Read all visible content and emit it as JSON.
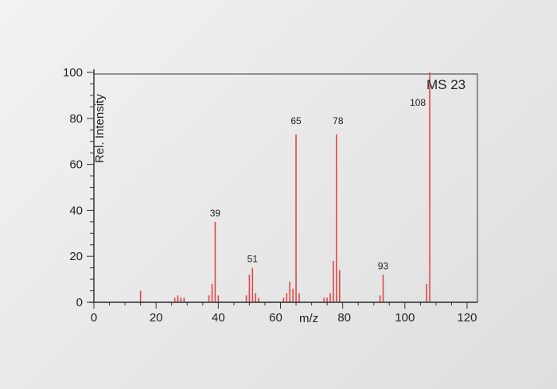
{
  "chart_data": {
    "type": "bar",
    "spectrum_label": "MS 23",
    "xlabel": "m/z",
    "ylabel": "Rel. Intensity",
    "xlim": [
      0,
      120
    ],
    "ylim": [
      0,
      100
    ],
    "x_ticks": [
      0,
      20,
      40,
      60,
      80,
      100,
      120
    ],
    "y_ticks": [
      0,
      20,
      40,
      60,
      80,
      100
    ],
    "grid": false,
    "colors": {
      "peaks": "#e04848",
      "axes": "#333333",
      "frame": "#555555"
    },
    "peaks": [
      {
        "mz": 15,
        "intensity": 5
      },
      {
        "mz": 26,
        "intensity": 2
      },
      {
        "mz": 27,
        "intensity": 3
      },
      {
        "mz": 28,
        "intensity": 2
      },
      {
        "mz": 29,
        "intensity": 2
      },
      {
        "mz": 37,
        "intensity": 3
      },
      {
        "mz": 38,
        "intensity": 8
      },
      {
        "mz": 39,
        "intensity": 35
      },
      {
        "mz": 40,
        "intensity": 3
      },
      {
        "mz": 49,
        "intensity": 3
      },
      {
        "mz": 50,
        "intensity": 12
      },
      {
        "mz": 51,
        "intensity": 15
      },
      {
        "mz": 52,
        "intensity": 4
      },
      {
        "mz": 53,
        "intensity": 2
      },
      {
        "mz": 61,
        "intensity": 2
      },
      {
        "mz": 62,
        "intensity": 4
      },
      {
        "mz": 63,
        "intensity": 9
      },
      {
        "mz": 64,
        "intensity": 6
      },
      {
        "mz": 65,
        "intensity": 73
      },
      {
        "mz": 66,
        "intensity": 4
      },
      {
        "mz": 74,
        "intensity": 2
      },
      {
        "mz": 75,
        "intensity": 2
      },
      {
        "mz": 76,
        "intensity": 4
      },
      {
        "mz": 77,
        "intensity": 18
      },
      {
        "mz": 78,
        "intensity": 73
      },
      {
        "mz": 79,
        "intensity": 14
      },
      {
        "mz": 92,
        "intensity": 3
      },
      {
        "mz": 93,
        "intensity": 12
      },
      {
        "mz": 107,
        "intensity": 8
      },
      {
        "mz": 108,
        "intensity": 100
      }
    ],
    "peak_labels": [
      {
        "mz": 39,
        "intensity": 35,
        "text": "39"
      },
      {
        "mz": 51,
        "intensity": 15,
        "text": "51"
      },
      {
        "mz": 65,
        "intensity": 73,
        "text": "65"
      },
      {
        "mz": 78,
        "intensity": 73,
        "text": "78"
      },
      {
        "mz": 93,
        "intensity": 12,
        "text": "93"
      },
      {
        "mz": 108,
        "intensity": 100,
        "text": "108"
      }
    ]
  }
}
